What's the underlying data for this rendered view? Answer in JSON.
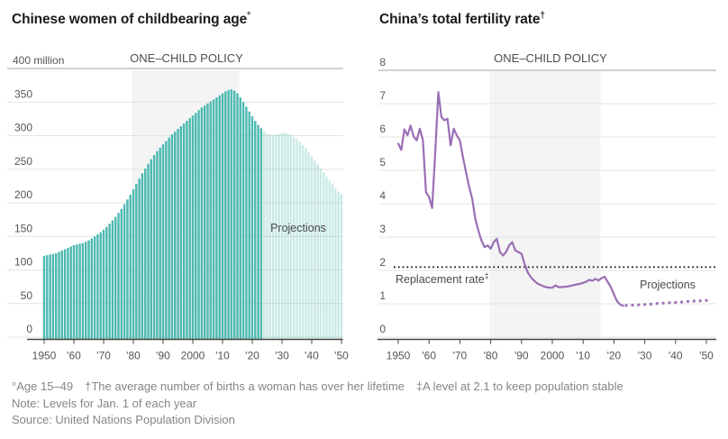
{
  "left_chart": {
    "title": "Chinese women of childbearing age",
    "title_marker": "°",
    "policy_label": "ONE–CHILD POLICY",
    "projections_label": "Projections",
    "y_axis_top_label": "400 million"
  },
  "right_chart": {
    "title": "China’s total fertility rate",
    "title_marker": "†",
    "policy_label": "ONE–CHILD POLICY",
    "projections_label": "Projections",
    "replacement_label": "Replacement rate",
    "replacement_marker": "‡"
  },
  "footnotes": {
    "definitions": [
      "°Age 15–49",
      "†The average number of births a woman has over her lifetime",
      "‡A level at 2.1 to keep population stable"
    ],
    "note": "Note: Levels for Jan. 1 of each year",
    "source": "Source: United Nations Population Division"
  },
  "colors": {
    "bar_actual": "#4cb9b0",
    "bar_projection": "#c9e8e5",
    "line_actual": "#9a6fb5",
    "policy_shade": "#f4f4f4",
    "gridline": "#e4e4e4",
    "top_rule": "#a2a2a2",
    "axis": "#444444",
    "replacement_line": "#222222",
    "label_text": "#565656",
    "annotation_text": "#4a4a4a",
    "footnote_text": "#858585"
  },
  "chart_data": [
    {
      "type": "bar",
      "title": "Chinese women of childbearing age (age 15–49), millions",
      "unit": "million",
      "ylim": [
        0,
        400
      ],
      "ytick_step": 50,
      "ytick_labels": [
        "0",
        "50",
        "100",
        "150",
        "200",
        "250",
        "300",
        "350",
        "400 million"
      ],
      "xtick_labels": [
        "1950",
        "'60",
        "'70",
        "'80",
        "'90",
        "2000",
        "'10",
        "'20",
        "'30",
        "'40",
        "'50"
      ],
      "x_range_years": [
        1950,
        2050
      ],
      "one_child_policy_span": [
        1980,
        2016
      ],
      "grid": true,
      "series": [
        {
          "name": "actual",
          "start_year": 1950,
          "values": [
            121,
            122,
            123,
            124,
            125,
            127,
            129,
            131,
            133,
            135,
            137,
            138,
            139,
            140,
            142,
            144,
            147,
            150,
            153,
            156,
            160,
            164,
            169,
            174,
            179,
            185,
            191,
            198,
            205,
            212,
            220,
            228,
            236,
            244,
            251,
            258,
            265,
            271,
            277,
            282,
            287,
            292,
            297,
            302,
            306,
            310,
            314,
            318,
            322,
            326,
            330,
            334,
            338,
            342,
            345,
            348,
            351,
            354,
            357,
            360,
            363,
            366,
            368,
            369,
            367,
            363,
            357,
            350,
            343,
            336,
            329,
            322,
            316,
            311
          ]
        },
        {
          "name": "projection",
          "start_year": 2024,
          "values": [
            306,
            303,
            302,
            301,
            302,
            303,
            304,
            304,
            303,
            301,
            298,
            295,
            291,
            286,
            281,
            275,
            269,
            263,
            257,
            251,
            245,
            239,
            233,
            228,
            222,
            217,
            213
          ]
        }
      ]
    },
    {
      "type": "line",
      "title": "China's total fertility rate (births per woman)",
      "ylim": [
        0,
        8
      ],
      "ytick_step": 1,
      "ytick_labels": [
        "0",
        "1",
        "2",
        "3",
        "4",
        "5",
        "6",
        "7",
        "8"
      ],
      "xtick_labels": [
        "1950",
        "'60",
        "'70",
        "'80",
        "'90",
        "2000",
        "'10",
        "'20",
        "'30",
        "'40",
        "'50"
      ],
      "x_range_years": [
        1950,
        2050
      ],
      "one_child_policy_span": [
        1980,
        2016
      ],
      "replacement_rate": 2.1,
      "grid": true,
      "series": [
        {
          "name": "actual",
          "start_year": 1950,
          "values": [
            5.8,
            5.61,
            6.23,
            6.05,
            6.34,
            6.02,
            5.9,
            6.25,
            5.9,
            4.35,
            4.2,
            3.87,
            5.5,
            7.35,
            6.6,
            6.5,
            6.55,
            5.75,
            6.25,
            6.05,
            5.9,
            5.4,
            4.95,
            4.5,
            4.15,
            3.55,
            3.2,
            2.9,
            2.7,
            2.75,
            2.65,
            2.85,
            2.95,
            2.55,
            2.45,
            2.55,
            2.75,
            2.85,
            2.6,
            2.55,
            2.5,
            2.2,
            1.95,
            1.8,
            1.7,
            1.62,
            1.57,
            1.53,
            1.5,
            1.48,
            1.48,
            1.55,
            1.5,
            1.5,
            1.51,
            1.52,
            1.54,
            1.56,
            1.58,
            1.6,
            1.63,
            1.66,
            1.72,
            1.69,
            1.75,
            1.7,
            1.77,
            1.81,
            1.65,
            1.5,
            1.28,
            1.08,
            0.98,
            0.94
          ]
        },
        {
          "name": "projection",
          "start_year": 2024,
          "values": [
            0.95,
            0.95,
            0.96,
            0.96,
            0.97,
            0.98,
            0.98,
            0.99,
            0.99,
            1.0,
            1.01,
            1.01,
            1.02,
            1.02,
            1.03,
            1.04,
            1.04,
            1.05,
            1.05,
            1.06,
            1.07,
            1.07,
            1.08,
            1.08,
            1.09,
            1.1,
            1.1
          ]
        }
      ]
    }
  ]
}
